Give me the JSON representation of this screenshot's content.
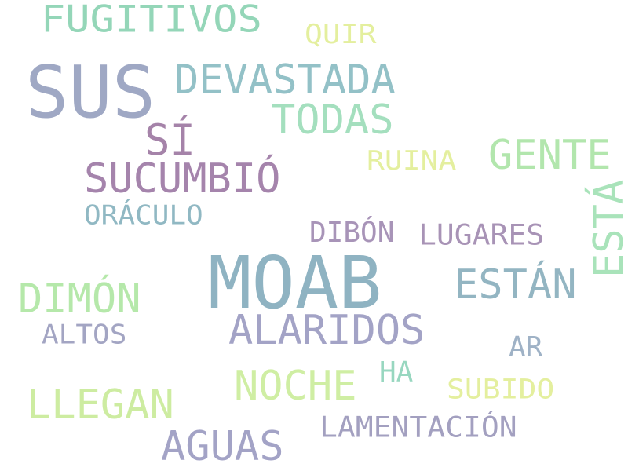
{
  "words": [
    {
      "text": "FUGITIVOS",
      "color": "#94d6b8"
    },
    {
      "text": "QUIR",
      "color": "#e4ef9e"
    },
    {
      "text": "SUS",
      "color": "#9fa8c4"
    },
    {
      "text": "DEVASTADA",
      "color": "#93c1c7"
    },
    {
      "text": "TODAS",
      "color": "#a4dfbe"
    },
    {
      "text": "SÍ",
      "color": "#a583a9"
    },
    {
      "text": "GENTE",
      "color": "#b2e6ad"
    },
    {
      "text": "SUCUMBIÓ",
      "color": "#a584ac"
    },
    {
      "text": "RUINA",
      "color": "#e4ef9e"
    },
    {
      "text": "ORÁCULO",
      "color": "#90b8c3"
    },
    {
      "text": "ESTÁ",
      "color": "#a9e3ba"
    },
    {
      "text": "DIBÓN",
      "color": "#a894b8"
    },
    {
      "text": "LUGARES",
      "color": "#a893b6"
    },
    {
      "text": "MOAB",
      "color": "#8fb3c2"
    },
    {
      "text": "ESTÁN",
      "color": "#93b5c2"
    },
    {
      "text": "DIMÓN",
      "color": "#b5e8aa"
    },
    {
      "text": "ALARIDOS",
      "color": "#a3a3c6"
    },
    {
      "text": "ALTOS",
      "color": "#a3a5c3"
    },
    {
      "text": "AR",
      "color": "#9fb2c6"
    },
    {
      "text": "HA",
      "color": "#98d7c0"
    },
    {
      "text": "NOCHE",
      "color": "#cfeea3"
    },
    {
      "text": "SUBIDO",
      "color": "#e4ef9e"
    },
    {
      "text": "LLEGAN",
      "color": "#cdeca1"
    },
    {
      "text": "LAMENTACIÓN",
      "color": "#a3a0c0"
    },
    {
      "text": "AGUAS",
      "color": "#a3a3c6"
    }
  ]
}
